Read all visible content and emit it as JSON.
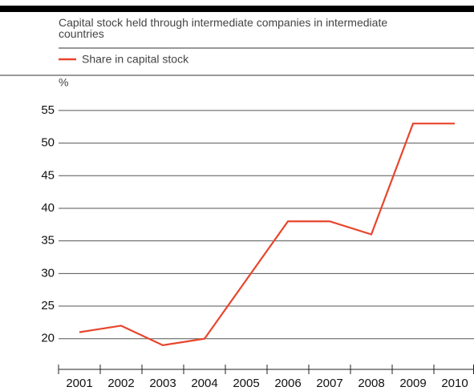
{
  "chart_data": {
    "type": "line",
    "title": "Capital stock held through intermediate companies in intermediate countries",
    "y_unit": "%",
    "categories": [
      "2001",
      "2002",
      "2003",
      "2004",
      "2005",
      "2006",
      "2007",
      "2008",
      "2009",
      "2010"
    ],
    "series": [
      {
        "name": "Share in capital stock",
        "color": "#e8452c",
        "values": [
          21,
          22,
          19,
          20,
          29,
          38,
          38,
          36,
          53,
          53
        ]
      }
    ],
    "ylim": [
      15.3,
      57.2
    ],
    "yticks": [
      20,
      25,
      30,
      35,
      40,
      45,
      50,
      55
    ],
    "grid": true
  }
}
